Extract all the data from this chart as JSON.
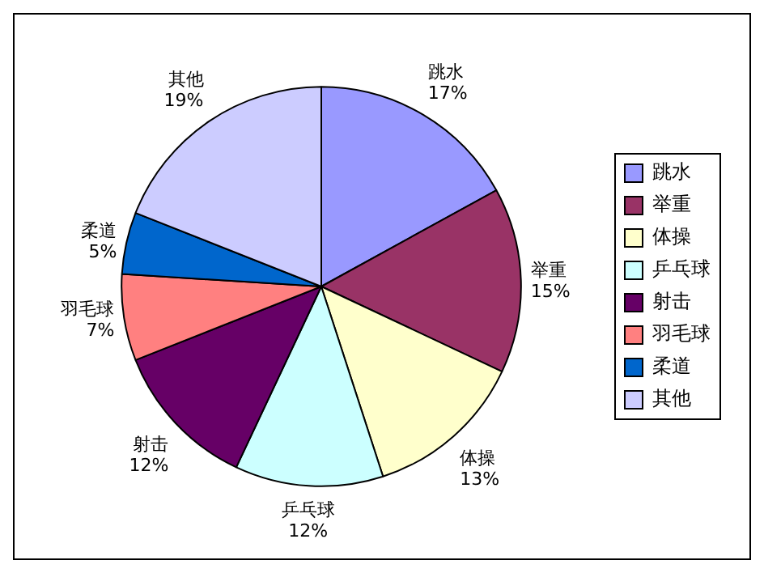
{
  "chart_data": {
    "type": "pie",
    "categories": [
      "跳水",
      "举重",
      "体操",
      "乒乓球",
      "射击",
      "羽毛球",
      "柔道",
      "其他"
    ],
    "values": [
      17,
      15,
      13,
      12,
      12,
      7,
      5,
      19
    ],
    "value_labels": [
      "17%",
      "15%",
      "13%",
      "12%",
      "12%",
      "7%",
      "5%",
      "19%"
    ],
    "colors": [
      "#9999ff",
      "#993366",
      "#ffffcc",
      "#ccffff",
      "#660066",
      "#ff8080",
      "#0066cc",
      "#ccccff"
    ],
    "legend": "right"
  }
}
